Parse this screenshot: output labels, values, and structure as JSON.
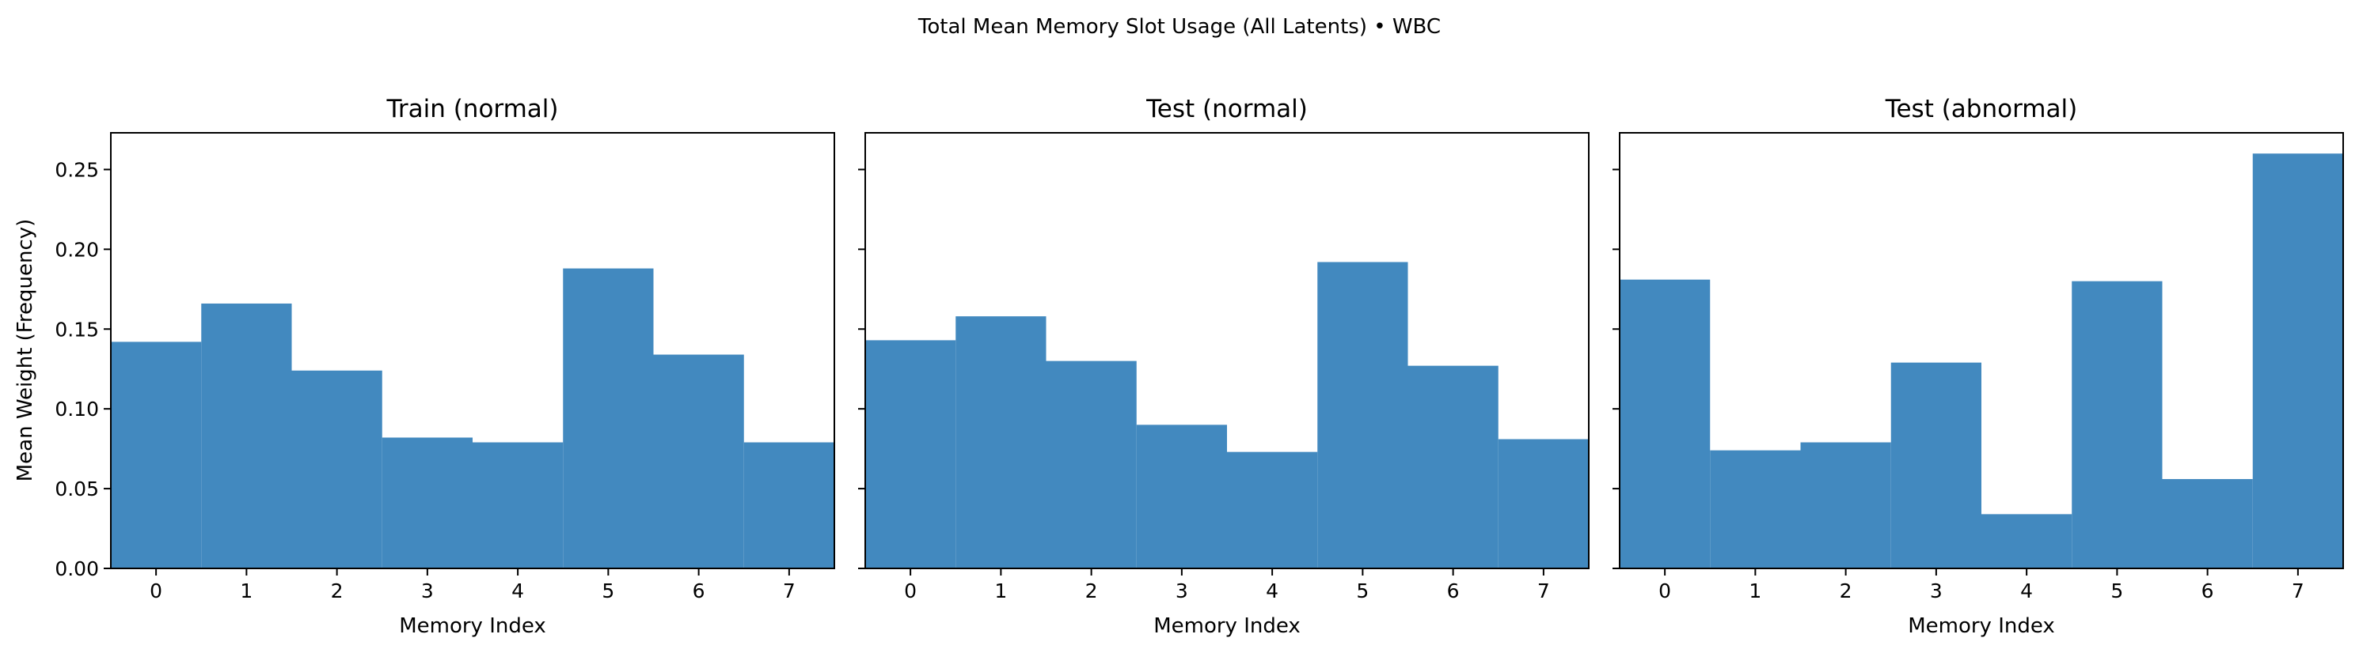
{
  "figure": {
    "suptitle": "Total Mean Memory Slot Usage (All Latents) • WBC",
    "bar_color": "#4289bf"
  },
  "chart_data": [
    {
      "type": "bar",
      "title": "Train (normal)",
      "categories": [
        "0",
        "1",
        "2",
        "3",
        "4",
        "5",
        "6",
        "7"
      ],
      "values": [
        0.142,
        0.166,
        0.124,
        0.082,
        0.079,
        0.188,
        0.134,
        0.079
      ],
      "xlabel": "Memory Index",
      "ylabel": "Mean Weight (Frequency)",
      "ylim": [
        0,
        0.273
      ],
      "yticks": [
        "0.00",
        "0.05",
        "0.10",
        "0.15",
        "0.20",
        "0.25"
      ],
      "grid": false
    },
    {
      "type": "bar",
      "title": "Test (normal)",
      "categories": [
        "0",
        "1",
        "2",
        "3",
        "4",
        "5",
        "6",
        "7"
      ],
      "values": [
        0.143,
        0.158,
        0.13,
        0.09,
        0.073,
        0.192,
        0.127,
        0.081
      ],
      "xlabel": "Memory Index",
      "ylabel": "",
      "ylim": [
        0,
        0.273
      ],
      "yticks": [],
      "grid": false
    },
    {
      "type": "bar",
      "title": "Test (abnormal)",
      "categories": [
        "0",
        "1",
        "2",
        "3",
        "4",
        "5",
        "6",
        "7"
      ],
      "values": [
        0.181,
        0.074,
        0.079,
        0.129,
        0.034,
        0.18,
        0.056,
        0.26
      ],
      "xlabel": "Memory Index",
      "ylabel": "",
      "ylim": [
        0,
        0.273
      ],
      "yticks": [],
      "grid": false
    }
  ]
}
